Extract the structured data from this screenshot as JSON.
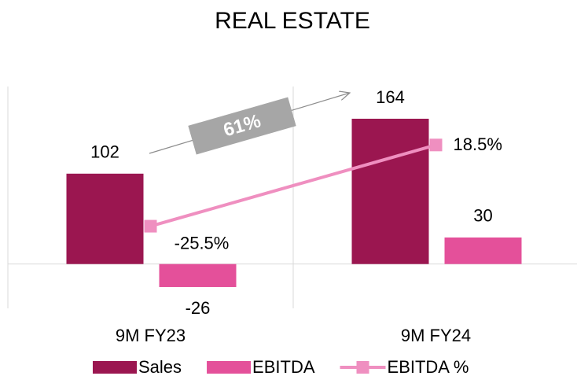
{
  "chart_data": {
    "type": "bar",
    "title": "REAL ESTATE",
    "categories": [
      "9M FY23",
      "9M FY24"
    ],
    "series": [
      {
        "name": "Sales",
        "color": "#9b1650",
        "values": [
          102,
          164
        ]
      },
      {
        "name": "EBITDA",
        "color": "#e4509a",
        "values": [
          -26,
          30
        ]
      },
      {
        "name": "EBITDA %",
        "color": "#ef8fc0",
        "type": "line",
        "axis": "y2",
        "values": [
          -25.5,
          18.5
        ],
        "value_labels": [
          "-25.5%",
          "18.5%"
        ]
      }
    ],
    "ylim": [
      -50,
      200
    ],
    "y2lim": [
      -70,
      50
    ],
    "annotation": "61%",
    "legend": "bottom"
  }
}
